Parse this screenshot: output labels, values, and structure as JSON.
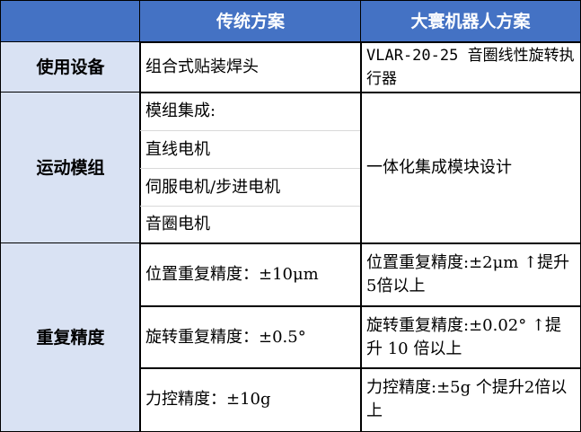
{
  "header": {
    "col1": "",
    "col2": "传统方案",
    "col3": "大寰机器人方案"
  },
  "rows": [
    {
      "label": "使用设备",
      "traditional": [
        "组合式贴装焊头"
      ],
      "dahuan": [
        "VLAR-20-25 音圈线性旋转执行器"
      ]
    },
    {
      "label": "运动模组",
      "traditional": [
        "模组集成:",
        "直线电机",
        "伺服电机/步进电机",
        "音圈电机"
      ],
      "dahuan": [
        "一体化集成模块设计"
      ]
    },
    {
      "label": "重复精度",
      "traditional": [
        "位置重复精度：±10μm",
        "旋转重复精度：±0.5°",
        "力控精度：±10g"
      ],
      "dahuan": [
        "位置重复精度:±2μm ↑提升5倍以上",
        "旋转重复精度:±0.02° ↑提升 10 倍以上",
        "力控精度:±5g 个提升2倍以上"
      ]
    }
  ],
  "colors": {
    "header_bg": "#4472C4",
    "label_bg": "#D9E2F3"
  }
}
